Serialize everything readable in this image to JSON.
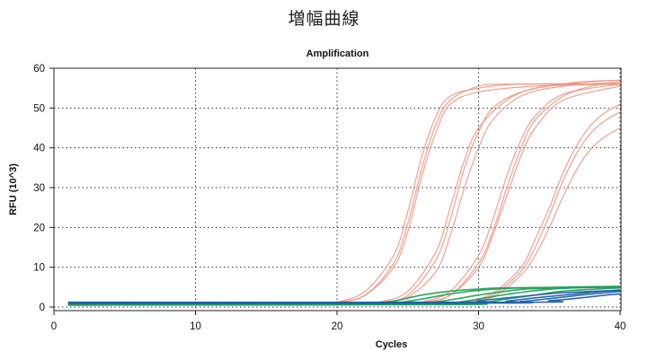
{
  "page": {
    "title": "増幅曲線"
  },
  "chart_data": {
    "type": "line",
    "title": "Amplification",
    "xlabel": "Cycles",
    "ylabel": "RFU (10^3)",
    "xlim": [
      0,
      40
    ],
    "ylim": [
      0,
      60
    ],
    "xticks": [
      0,
      10,
      20,
      30,
      40
    ],
    "yticks": [
      0,
      10,
      20,
      30,
      40,
      50,
      60
    ],
    "grid": true,
    "colors": {
      "red": "#f0907c",
      "green": "#22a05a",
      "blue": "#1f5fa8",
      "grid": "#333333"
    },
    "series": [
      {
        "color": "red",
        "values": [
          [
            1,
            0.9
          ],
          [
            18,
            0.9
          ],
          [
            20,
            1.2
          ],
          [
            22,
            3
          ],
          [
            24,
            11
          ],
          [
            25,
            21
          ],
          [
            26,
            35
          ],
          [
            27,
            46
          ],
          [
            28,
            52
          ],
          [
            30,
            55.5
          ],
          [
            32,
            56
          ],
          [
            35,
            56
          ],
          [
            40,
            56
          ]
        ]
      },
      {
        "color": "red",
        "values": [
          [
            1,
            0.9
          ],
          [
            18,
            0.9
          ],
          [
            20,
            1.3
          ],
          [
            22,
            4
          ],
          [
            24,
            13
          ],
          [
            25,
            24
          ],
          [
            26,
            38
          ],
          [
            27,
            48
          ],
          [
            28,
            53
          ],
          [
            30,
            55
          ],
          [
            33,
            56
          ],
          [
            40,
            56
          ]
        ]
      },
      {
        "color": "red",
        "values": [
          [
            1,
            0.9
          ],
          [
            18,
            0.9
          ],
          [
            20,
            1.2
          ],
          [
            22,
            3
          ],
          [
            24,
            10
          ],
          [
            25,
            19
          ],
          [
            26,
            33
          ],
          [
            27,
            44
          ],
          [
            28,
            51
          ],
          [
            30,
            54
          ],
          [
            34,
            55.5
          ],
          [
            40,
            56
          ]
        ]
      },
      {
        "color": "red",
        "values": [
          [
            1,
            0.9
          ],
          [
            21,
            0.9
          ],
          [
            23,
            1.2
          ],
          [
            25,
            3
          ],
          [
            27,
            12
          ],
          [
            28,
            22
          ],
          [
            29,
            35
          ],
          [
            30,
            44
          ],
          [
            31,
            50
          ],
          [
            33,
            54
          ],
          [
            36,
            56
          ],
          [
            40,
            57
          ]
        ]
      },
      {
        "color": "red",
        "values": [
          [
            1,
            0.9
          ],
          [
            21,
            0.9
          ],
          [
            23,
            1.3
          ],
          [
            25,
            4
          ],
          [
            27,
            14
          ],
          [
            28,
            25
          ],
          [
            29,
            37
          ],
          [
            30,
            45
          ],
          [
            32,
            52
          ],
          [
            34,
            55
          ],
          [
            37,
            56.5
          ],
          [
            40,
            57
          ]
        ]
      },
      {
        "color": "red",
        "values": [
          [
            1,
            0.9
          ],
          [
            21,
            0.9
          ],
          [
            23,
            1.1
          ],
          [
            25,
            2.5
          ],
          [
            27,
            9
          ],
          [
            28,
            18
          ],
          [
            29,
            30
          ],
          [
            30,
            40
          ],
          [
            31,
            47
          ],
          [
            33,
            53
          ],
          [
            36,
            55.5
          ],
          [
            40,
            56.5
          ]
        ]
      },
      {
        "color": "red",
        "values": [
          [
            1,
            0.9
          ],
          [
            24,
            0.9
          ],
          [
            26,
            1.2
          ],
          [
            28,
            3
          ],
          [
            30,
            11
          ],
          [
            31,
            19
          ],
          [
            32,
            30
          ],
          [
            33,
            40
          ],
          [
            34,
            47
          ],
          [
            36,
            53
          ],
          [
            38,
            55.5
          ],
          [
            40,
            56.5
          ]
        ]
      },
      {
        "color": "red",
        "values": [
          [
            1,
            0.9
          ],
          [
            24,
            0.9
          ],
          [
            26,
            1.3
          ],
          [
            28,
            4
          ],
          [
            30,
            13
          ],
          [
            31,
            22
          ],
          [
            32,
            33
          ],
          [
            33,
            42
          ],
          [
            34,
            48
          ],
          [
            36,
            53.5
          ],
          [
            40,
            56
          ]
        ]
      },
      {
        "color": "red",
        "values": [
          [
            1,
            0.9
          ],
          [
            24,
            0.9
          ],
          [
            26,
            1.2
          ],
          [
            28,
            3
          ],
          [
            30,
            10
          ],
          [
            31,
            18
          ],
          [
            32,
            28
          ],
          [
            33,
            38
          ],
          [
            34,
            45
          ],
          [
            36,
            52
          ],
          [
            40,
            55.5
          ]
        ]
      },
      {
        "color": "red",
        "values": [
          [
            1,
            0.9
          ],
          [
            27,
            0.9
          ],
          [
            29,
            1.3
          ],
          [
            31,
            3
          ],
          [
            33,
            9
          ],
          [
            34,
            15
          ],
          [
            35,
            23
          ],
          [
            36,
            32
          ],
          [
            37,
            39
          ],
          [
            38,
            44
          ],
          [
            39,
            47
          ],
          [
            40,
            49
          ]
        ]
      },
      {
        "color": "red",
        "values": [
          [
            1,
            0.9
          ],
          [
            27,
            0.9
          ],
          [
            29,
            1.3
          ],
          [
            31,
            3.5
          ],
          [
            33,
            10
          ],
          [
            34,
            17
          ],
          [
            35,
            25
          ],
          [
            36,
            34
          ],
          [
            37,
            41
          ],
          [
            38,
            46
          ],
          [
            39,
            49
          ],
          [
            40,
            51
          ]
        ]
      },
      {
        "color": "red",
        "values": [
          [
            1,
            0.9
          ],
          [
            27,
            0.9
          ],
          [
            29,
            1.2
          ],
          [
            31,
            2.5
          ],
          [
            33,
            8
          ],
          [
            34,
            13
          ],
          [
            35,
            20
          ],
          [
            36,
            28
          ],
          [
            37,
            35
          ],
          [
            38,
            40
          ],
          [
            39,
            43
          ],
          [
            40,
            45
          ]
        ]
      },
      {
        "color": "green",
        "values": [
          [
            1,
            0.5
          ],
          [
            20,
            0.6
          ],
          [
            22,
            0.8
          ],
          [
            24,
            1.5
          ],
          [
            26,
            3
          ],
          [
            28,
            4
          ],
          [
            30,
            4.5
          ],
          [
            32,
            4.8
          ],
          [
            40,
            5
          ]
        ]
      },
      {
        "color": "green",
        "values": [
          [
            1,
            0.6
          ],
          [
            22,
            0.7
          ],
          [
            24,
            1
          ],
          [
            26,
            2
          ],
          [
            28,
            3.3
          ],
          [
            30,
            4.2
          ],
          [
            33,
            4.8
          ],
          [
            40,
            5.2
          ]
        ]
      },
      {
        "color": "green",
        "values": [
          [
            1,
            0.5
          ],
          [
            24,
            0.6
          ],
          [
            26,
            0.9
          ],
          [
            28,
            1.8
          ],
          [
            30,
            3
          ],
          [
            32,
            4
          ],
          [
            34,
            4.6
          ],
          [
            40,
            5
          ]
        ]
      },
      {
        "color": "green",
        "values": [
          [
            1,
            0.6
          ],
          [
            26,
            0.7
          ],
          [
            28,
            1
          ],
          [
            30,
            2
          ],
          [
            32,
            3.2
          ],
          [
            34,
            4.1
          ],
          [
            36,
            4.7
          ],
          [
            40,
            5.1
          ]
        ]
      },
      {
        "color": "green",
        "values": [
          [
            1,
            0.5
          ],
          [
            28,
            0.6
          ],
          [
            30,
            1
          ],
          [
            32,
            2
          ],
          [
            34,
            3
          ],
          [
            36,
            4
          ],
          [
            40,
            4.8
          ]
        ]
      },
      {
        "color": "blue",
        "values": [
          [
            1,
            1.2
          ],
          [
            28,
            1.2
          ],
          [
            30,
            1.6
          ],
          [
            32,
            2.3
          ],
          [
            34,
            3
          ],
          [
            36,
            3.6
          ],
          [
            40,
            4.2
          ]
        ]
      },
      {
        "color": "blue",
        "values": [
          [
            1,
            1.0
          ],
          [
            30,
            1.1
          ],
          [
            32,
            1.5
          ],
          [
            34,
            2.3
          ],
          [
            36,
            3
          ],
          [
            38,
            3.7
          ],
          [
            40,
            4.3
          ]
        ]
      },
      {
        "color": "blue",
        "values": [
          [
            1,
            0.9
          ],
          [
            31,
            1
          ],
          [
            33,
            1.4
          ],
          [
            35,
            2.1
          ],
          [
            37,
            2.9
          ],
          [
            39,
            3.6
          ],
          [
            40,
            3.9
          ]
        ]
      },
      {
        "color": "blue",
        "values": [
          [
            1,
            1.1
          ],
          [
            33,
            1.2
          ],
          [
            35,
            1.6
          ],
          [
            37,
            2.2
          ],
          [
            39,
            3
          ],
          [
            40,
            3.3
          ]
        ]
      }
    ]
  }
}
